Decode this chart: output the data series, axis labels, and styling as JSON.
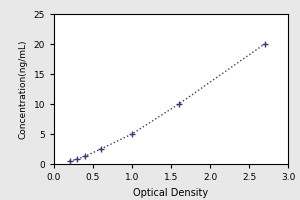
{
  "x_data": [
    0.2,
    0.3,
    0.4,
    0.6,
    1.0,
    1.6,
    2.7
  ],
  "y_data": [
    0.5,
    0.8,
    1.3,
    2.5,
    5.0,
    10.0,
    20.0
  ],
  "xlabel": "Optical Density",
  "ylabel": "Concentration(ng/mL)",
  "xlim": [
    0.0,
    3.0
  ],
  "ylim": [
    0,
    25
  ],
  "xticks": [
    0,
    0.5,
    1.0,
    1.5,
    2.0,
    2.5,
    3.0
  ],
  "yticks": [
    0,
    5,
    10,
    15,
    20,
    25
  ],
  "line_color": "#3a3a6e",
  "marker_color": "#3a3a6e",
  "bg_color": "#ffffff",
  "outer_bg": "#e8e8e8"
}
